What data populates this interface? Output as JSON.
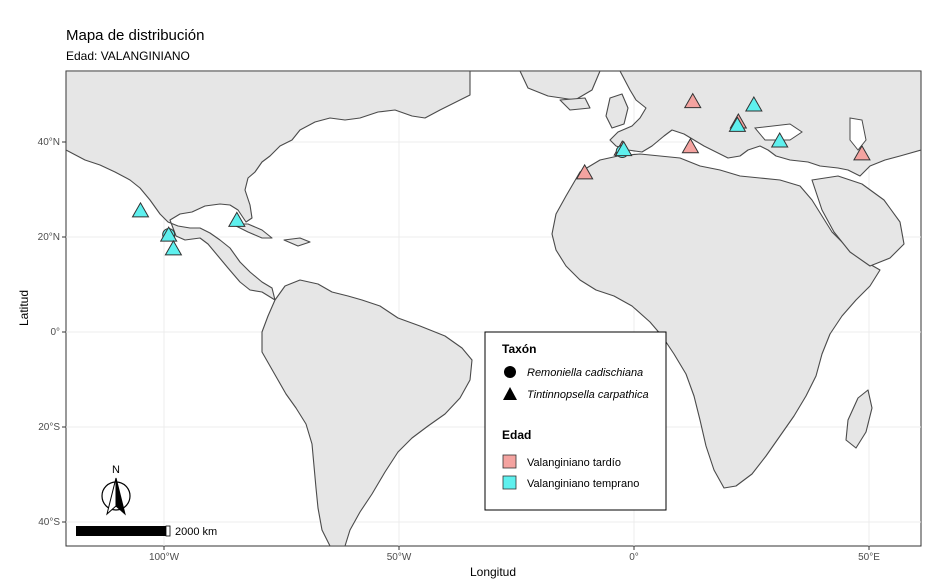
{
  "title": "Mapa de distribución",
  "subtitle": "Edad: VALANGINIANO",
  "axes": {
    "xlabel": "Longitud",
    "ylabel": "Latitud",
    "xticks": [
      {
        "value": -100,
        "label": "100°W"
      },
      {
        "value": -50,
        "label": "50°W"
      },
      {
        "value": 0,
        "label": "0°"
      },
      {
        "value": 50,
        "label": "50°E"
      }
    ],
    "yticks": [
      {
        "value": 40,
        "label": "40°N"
      },
      {
        "value": 20,
        "label": "20°N"
      },
      {
        "value": 0,
        "label": "0°"
      },
      {
        "value": -20,
        "label": "20°S"
      },
      {
        "value": -40,
        "label": "40°S"
      }
    ],
    "xlim": [
      -120,
      60
    ],
    "ylim": [
      -45,
      55
    ]
  },
  "legend": {
    "taxon_title": "Taxón",
    "taxa": [
      {
        "label": "Remoniella cadischiana",
        "shape": "circle"
      },
      {
        "label": "Tintinnopsella carpathica",
        "shape": "triangle"
      }
    ],
    "age_title": "Edad",
    "ages": [
      {
        "label": "Valanginiano tardío",
        "color": "#f4a3a0"
      },
      {
        "label": "Valanginiano temprano",
        "color": "#5ef0ee"
      }
    ]
  },
  "scalebar": {
    "label": "2000 km"
  },
  "north_arrow": {
    "label": "N"
  },
  "colors": {
    "tardio": "#f4a3a0",
    "temprano": "#5ef0ee",
    "land": "#e6e6e6",
    "border": "#4a4a4a"
  },
  "chart_data": {
    "type": "map",
    "points": [
      {
        "lon": 12.5,
        "lat": 48.5,
        "taxon": "Tintinnopsella carpathica",
        "age": "Valanginiano tardío"
      },
      {
        "lon": 25.5,
        "lat": 47.8,
        "taxon": "Tintinnopsella carpathica",
        "age": "Valanginiano temprano"
      },
      {
        "lon": 22.2,
        "lat": 44.2,
        "taxon": "Tintinnopsella carpathica",
        "age": "Valanginiano tardío"
      },
      {
        "lon": 22.0,
        "lat": 43.5,
        "taxon": "Tintinnopsella carpathica",
        "age": "Valanginiano temprano"
      },
      {
        "lon": 31.0,
        "lat": 40.2,
        "taxon": "Tintinnopsella carpathica",
        "age": "Valanginiano temprano"
      },
      {
        "lon": 12.0,
        "lat": 39.0,
        "taxon": "Tintinnopsella carpathica",
        "age": "Valanginiano tardío"
      },
      {
        "lon": -2.5,
        "lat": 38.5,
        "taxon": "Tintinnopsella carpathica",
        "age": "Valanginiano tardío"
      },
      {
        "lon": -2.5,
        "lat": 38.0,
        "taxon": "Remoniella cadischiana",
        "age": "Valanginiano temprano"
      },
      {
        "lon": -2.2,
        "lat": 38.4,
        "taxon": "Tintinnopsella carpathica",
        "age": "Valanginiano temprano"
      },
      {
        "lon": -10.5,
        "lat": 33.5,
        "taxon": "Tintinnopsella carpathica",
        "age": "Valanginiano tardío"
      },
      {
        "lon": 48.5,
        "lat": 37.5,
        "taxon": "Tintinnopsella carpathica",
        "age": "Valanginiano tardío"
      },
      {
        "lon": -105.0,
        "lat": 25.5,
        "taxon": "Tintinnopsella carpathica",
        "age": "Valanginiano temprano"
      },
      {
        "lon": -84.5,
        "lat": 23.5,
        "taxon": "Tintinnopsella carpathica",
        "age": "Valanginiano temprano"
      },
      {
        "lon": -99.0,
        "lat": 20.5,
        "taxon": "Remoniella cadischiana",
        "age": "Valanginiano temprano"
      },
      {
        "lon": -99.0,
        "lat": 20.4,
        "taxon": "Tintinnopsella carpathica",
        "age": "Valanginiano temprano"
      },
      {
        "lon": -98.0,
        "lat": 17.5,
        "taxon": "Tintinnopsella carpathica",
        "age": "Valanginiano temprano"
      }
    ]
  }
}
